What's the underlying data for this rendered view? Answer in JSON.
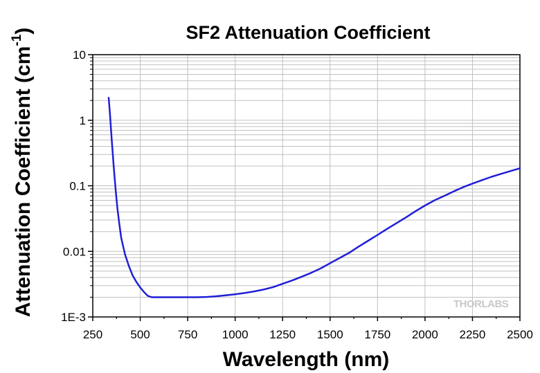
{
  "chart_data": {
    "type": "line",
    "title": "SF2 Attenuation Coefficient",
    "xlabel": "Wavelength (nm)",
    "ylabel_main": "Attenuation Coefficient (cm",
    "ylabel_sup": "-1",
    "ylabel_close": ")",
    "xlim": [
      250,
      2500
    ],
    "ylim": [
      0.001,
      10
    ],
    "yscale": "log",
    "grid": true,
    "x_ticks": [
      "250",
      "500",
      "750",
      "1000",
      "1250",
      "1500",
      "1750",
      "2000",
      "2250",
      "2500"
    ],
    "y_ticks": [
      "1E-3",
      "0.01",
      "0.1",
      "1",
      "10"
    ],
    "watermark": "THORLABS",
    "series": [
      {
        "color": "#1f1fd6",
        "x": [
          334,
          340,
          350,
          360,
          370,
          380,
          390,
          400,
          420,
          440,
          460,
          480,
          500,
          520,
          540,
          560,
          580,
          600,
          650,
          700,
          750,
          800,
          850,
          900,
          950,
          1000,
          1050,
          1100,
          1150,
          1200,
          1250,
          1300,
          1350,
          1400,
          1450,
          1500,
          1550,
          1600,
          1650,
          1700,
          1750,
          1800,
          1850,
          1900,
          1950,
          2000,
          2050,
          2100,
          2150,
          2200,
          2250,
          2300,
          2350,
          2400,
          2450,
          2500
        ],
        "y": [
          2.2,
          1.3,
          0.5,
          0.2,
          0.09,
          0.045,
          0.026,
          0.016,
          0.009,
          0.006,
          0.0043,
          0.0034,
          0.0028,
          0.0024,
          0.0021,
          0.002,
          0.002,
          0.002,
          0.002,
          0.002,
          0.002,
          0.002,
          0.00202,
          0.00207,
          0.00214,
          0.00222,
          0.00232,
          0.00245,
          0.00262,
          0.00285,
          0.0032,
          0.0036,
          0.0041,
          0.0047,
          0.0055,
          0.0066,
          0.0079,
          0.0095,
          0.0118,
          0.0145,
          0.0178,
          0.022,
          0.027,
          0.033,
          0.041,
          0.05,
          0.06,
          0.07,
          0.082,
          0.095,
          0.108,
          0.122,
          0.137,
          0.152,
          0.168,
          0.185
        ]
      }
    ]
  }
}
